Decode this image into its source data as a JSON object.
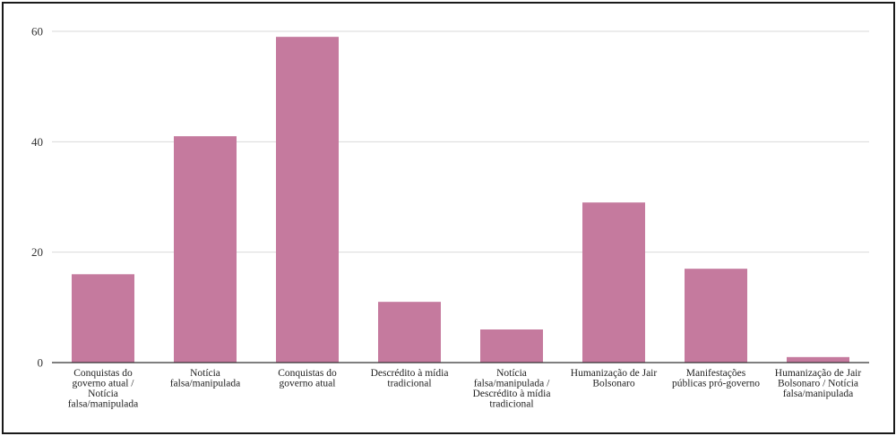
{
  "chart_data": {
    "type": "bar",
    "title": "",
    "xlabel": "",
    "ylabel": "",
    "ylim": [
      0,
      60
    ],
    "yticks": [
      0,
      20,
      40,
      60
    ],
    "grid": true,
    "legend": "none",
    "bar_color": "#c57a9e",
    "categories": [
      [
        "Conquistas do",
        "governo atual /",
        "Notícia",
        "falsa/manipulada"
      ],
      [
        "Notícia",
        "falsa/manipulada"
      ],
      [
        "Conquistas do",
        "governo atual"
      ],
      [
        "Descrédito à mídia",
        "tradicional"
      ],
      [
        "Notícia",
        "falsa/manipulada /",
        "Descrédito à mídia",
        "tradicional"
      ],
      [
        "Humanização de Jair",
        "Bolsonaro"
      ],
      [
        "Manifestações",
        "públicas pró-governo"
      ],
      [
        "Humanização de Jair",
        "Bolsonaro / Notícia",
        "falsa/manipulada"
      ]
    ],
    "values": [
      16,
      41,
      59,
      11,
      6,
      29,
      17,
      1
    ]
  }
}
